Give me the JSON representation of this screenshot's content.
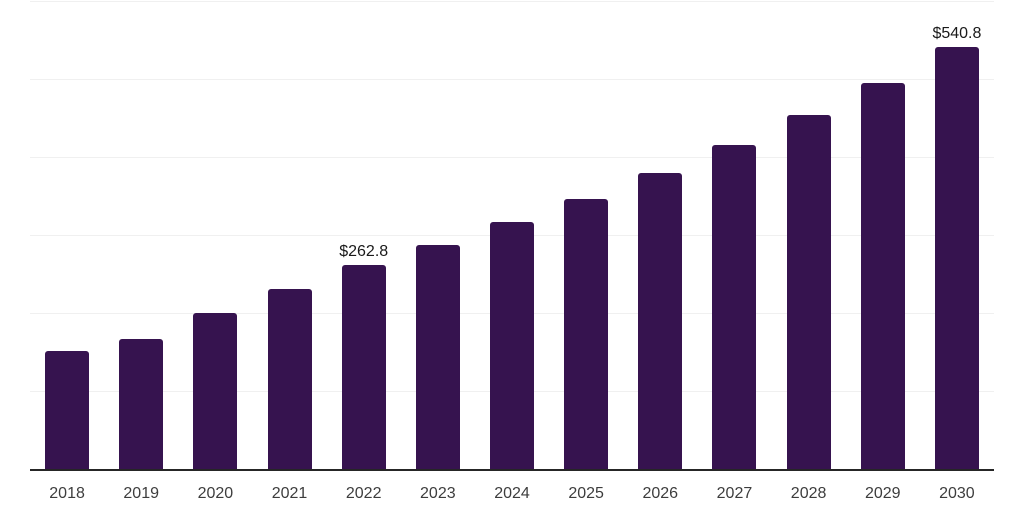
{
  "chart_data": {
    "type": "bar",
    "title": "",
    "xlabel": "",
    "ylabel": "",
    "categories": [
      "2018",
      "2019",
      "2020",
      "2021",
      "2022",
      "2023",
      "2024",
      "2025",
      "2026",
      "2027",
      "2028",
      "2029",
      "2030"
    ],
    "values": [
      152.2,
      167.6,
      200.4,
      231.2,
      262.8,
      287.8,
      317.6,
      346.3,
      379.6,
      415.7,
      454.1,
      495.5,
      540.8
    ],
    "bar_labels": [
      "",
      "",
      "",
      "",
      "$262.8",
      "",
      "",
      "",
      "",
      "",
      "",
      "",
      "$540.8"
    ],
    "ylim": [
      0,
      600
    ],
    "grid_step": 100,
    "grid": "horizontal",
    "legend_position": "none",
    "colors": {
      "bar": "#36134F",
      "gridline": "#f0f0f0",
      "axis_line": "#262626",
      "tick_label": "#3d3d3d",
      "data_label": "#1a1a1a",
      "background": "#ffffff"
    }
  }
}
